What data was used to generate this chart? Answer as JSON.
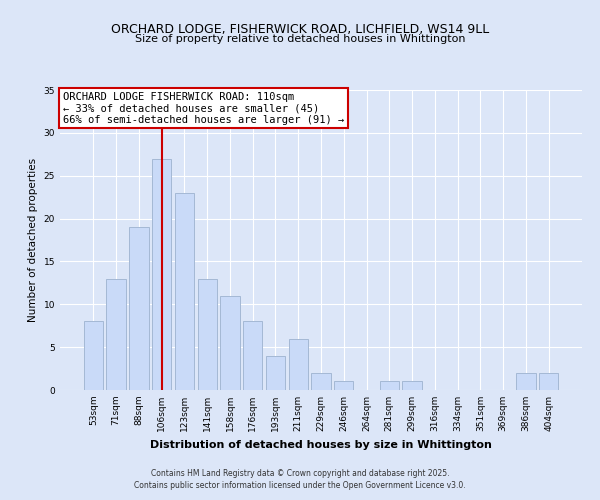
{
  "title_line1": "ORCHARD LODGE, FISHERWICK ROAD, LICHFIELD, WS14 9LL",
  "title_line2": "Size of property relative to detached houses in Whittington",
  "xlabel": "Distribution of detached houses by size in Whittington",
  "ylabel": "Number of detached properties",
  "bar_labels": [
    "53sqm",
    "71sqm",
    "88sqm",
    "106sqm",
    "123sqm",
    "141sqm",
    "158sqm",
    "176sqm",
    "193sqm",
    "211sqm",
    "229sqm",
    "246sqm",
    "264sqm",
    "281sqm",
    "299sqm",
    "316sqm",
    "334sqm",
    "351sqm",
    "369sqm",
    "386sqm",
    "404sqm"
  ],
  "bar_values": [
    8,
    13,
    19,
    27,
    23,
    13,
    11,
    8,
    4,
    6,
    2,
    1,
    0,
    1,
    1,
    0,
    0,
    0,
    0,
    2,
    2
  ],
  "bar_color": "#c9daf8",
  "bar_edge_color": "#a4b8d4",
  "vline_color": "#cc0000",
  "annotation_title": "ORCHARD LODGE FISHERWICK ROAD: 110sqm",
  "annotation_line1": "← 33% of detached houses are smaller (45)",
  "annotation_line2": "66% of semi-detached houses are larger (91) →",
  "annotation_box_facecolor": "#ffffff",
  "annotation_box_edgecolor": "#cc0000",
  "ylim": [
    0,
    35
  ],
  "yticks": [
    0,
    5,
    10,
    15,
    20,
    25,
    30,
    35
  ],
  "background_color": "#dce6f8",
  "grid_color": "#ffffff",
  "footer_line1": "Contains HM Land Registry data © Crown copyright and database right 2025.",
  "footer_line2": "Contains public sector information licensed under the Open Government Licence v3.0."
}
